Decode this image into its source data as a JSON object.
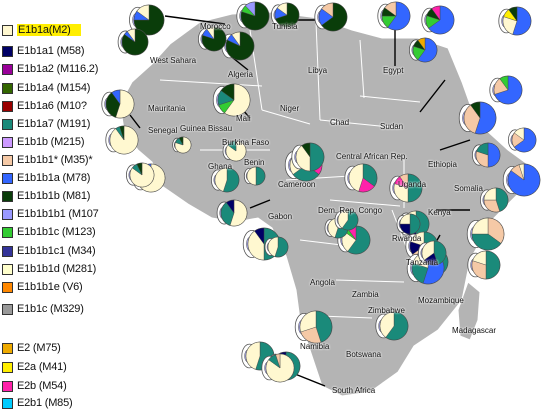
{
  "legend": [
    {
      "label": "E1b1a(M2)",
      "color": "#fff8d0",
      "highlight": true
    },
    {
      "label": "E1b1a1 (M58)",
      "color": "#000066"
    },
    {
      "label": "E1b1a2 (M116.2)",
      "color": "#990099"
    },
    {
      "label": "E1b1a4 (M154)",
      "color": "#336600"
    },
    {
      "label": "E1b1a6 (M10?",
      "color": "#990000"
    },
    {
      "label": "E1b1a7 (M191)",
      "color": "#1a8a7a"
    },
    {
      "label": "E1b1b (M215)",
      "color": "#cc99ff"
    },
    {
      "label": "E1b1b1* (M35)*",
      "color": "#f5c9a6"
    },
    {
      "label": "E1b1b1a (M78)",
      "color": "#3366ff"
    },
    {
      "label": "E1b1b1b (M81)",
      "color": "#0a3d0a"
    },
    {
      "label": "E1b1b1b1 (M107",
      "color": "#9999ff"
    },
    {
      "label": "E1b1b1c (M123)",
      "color": "#33cc33"
    },
    {
      "label": "E1b1b1c1 (M34)",
      "color": "#333399"
    },
    {
      "label": "E1b1b1d (M281)",
      "color": "#ffffcc"
    },
    {
      "label": "E1b1b1e (V6)",
      "color": "#ff8800"
    },
    {
      "label": "E1b1c (M329)",
      "color": "#999999"
    },
    {
      "label": "E2 (M75)",
      "color": "#eeaa00"
    },
    {
      "label": "E2a (M41)",
      "color": "#ffee00"
    },
    {
      "label": "E2b (M54)",
      "color": "#ff22aa"
    },
    {
      "label": "E2b1 (M85)",
      "color": "#00ccff"
    }
  ],
  "countries": [
    {
      "id": "morocco",
      "label": "Morocco"
    },
    {
      "id": "tunisia",
      "label": "Tunisia"
    },
    {
      "id": "algeria",
      "label": "Algeria"
    },
    {
      "id": "libya",
      "label": "Libya"
    },
    {
      "id": "egypt",
      "label": "Egypt"
    },
    {
      "id": "west-sahara",
      "label": "West Sahara"
    },
    {
      "id": "mauritania",
      "label": "Mauritania"
    },
    {
      "id": "mali",
      "label": "Mali"
    },
    {
      "id": "niger",
      "label": "Niger"
    },
    {
      "id": "chad",
      "label": "Chad"
    },
    {
      "id": "sudan",
      "label": "Sudan"
    },
    {
      "id": "senegal",
      "label": "Senegal"
    },
    {
      "id": "guinea-bissau",
      "label": "Guinea Bissau"
    },
    {
      "id": "burkina-faso",
      "label": "Burkina Faso"
    },
    {
      "id": "ghana",
      "label": "Ghana"
    },
    {
      "id": "benin",
      "label": "Benin"
    },
    {
      "id": "car",
      "label": "Central African Rep."
    },
    {
      "id": "ethiopia",
      "label": "Ethiopia"
    },
    {
      "id": "somalia",
      "label": "Somalia"
    },
    {
      "id": "cameroon",
      "label": "Cameroon"
    },
    {
      "id": "uganda",
      "label": "Uganda"
    },
    {
      "id": "kenya",
      "label": "Kenya"
    },
    {
      "id": "gabon",
      "label": "Gabon"
    },
    {
      "id": "drc",
      "label": "Dem. Rep. Congo"
    },
    {
      "id": "rwanda",
      "label": "Rwanda"
    },
    {
      "id": "tanzania",
      "label": "Tanzania"
    },
    {
      "id": "angola",
      "label": "Angola"
    },
    {
      "id": "zambia",
      "label": "Zambia"
    },
    {
      "id": "mozambique",
      "label": "Mozambique"
    },
    {
      "id": "zimbabwe",
      "label": "Zimbabwe"
    },
    {
      "id": "namibia",
      "label": "Namibia"
    },
    {
      "id": "botswana",
      "label": "Botswana"
    },
    {
      "id": "madagascar",
      "label": "Madagascar"
    },
    {
      "id": "south-africa",
      "label": "South Africa"
    }
  ],
  "pies": [
    {
      "id": "morocco-1",
      "slices": [
        [
          "E1b1b1b (M81)",
          0.75
        ],
        [
          "E1b1b1a (M78)",
          0.1
        ],
        [
          "E1b1a(M2)",
          0.15
        ]
      ]
    },
    {
      "id": "morocco-2",
      "slices": [
        [
          "E1b1b1b (M81)",
          0.8
        ],
        [
          "E1b1b1c (M123)",
          0.08
        ],
        [
          "E1b1b1b1 (M107",
          0.12
        ]
      ]
    },
    {
      "id": "morocco-3",
      "slices": [
        [
          "E1b1b1b (M81)",
          0.82
        ],
        [
          "E1b1b1a (M78)",
          0.08
        ],
        [
          "E1b1a(M2)",
          0.1
        ]
      ]
    },
    {
      "id": "tunisia-1",
      "slices": [
        [
          "E1b1b1b (M81)",
          0.65
        ],
        [
          "E1b1b1a (M78)",
          0.2
        ],
        [
          "E1b1b1* (M35)*",
          0.15
        ]
      ]
    },
    {
      "id": "tunisia-2",
      "slices": [
        [
          "E1b1b1b (M81)",
          0.7
        ],
        [
          "E1b1b1a (M78)",
          0.15
        ],
        [
          "E1b1a(M2)",
          0.15
        ]
      ]
    },
    {
      "id": "algeria-1",
      "slices": [
        [
          "E1b1b1b (M81)",
          0.8
        ],
        [
          "E1b1b1a (M78)",
          0.1
        ],
        [
          "E1b1a(M2)",
          0.1
        ]
      ]
    },
    {
      "id": "egypt-1",
      "slices": [
        [
          "E1b1b1a (M78)",
          0.6
        ],
        [
          "E1b1b1c (M123)",
          0.15
        ],
        [
          "E1b1b1b (M81)",
          0.1
        ],
        [
          "E1b1b1* (M35)*",
          0.15
        ]
      ]
    },
    {
      "id": "egypt-2",
      "slices": [
        [
          "E1b1b1a (M78)",
          0.65
        ],
        [
          "E1b1b1c (M123)",
          0.15
        ],
        [
          "E1b1b1b (M81)",
          0.1
        ],
        [
          "E2b (M54)",
          0.1
        ]
      ]
    },
    {
      "id": "egypt-3",
      "slices": [
        [
          "E1b1b1a (M78)",
          0.6
        ],
        [
          "E1b1b1c (M123)",
          0.2
        ],
        [
          "E1b1b1b (M81)",
          0.1
        ],
        [
          "E2 (M75)",
          0.1
        ]
      ]
    },
    {
      "id": "egypt-4",
      "slices": [
        [
          "E1b1b1a (M78)",
          0.55
        ],
        [
          "E1b1a(M2)",
          0.25
        ],
        [
          "E2a (M41)",
          0.1
        ],
        [
          "E1b1b1b (M81)",
          0.1
        ]
      ]
    },
    {
      "id": "west-sahara-1",
      "slices": [
        [
          "E1b1b1b (M81)",
          0.85
        ],
        [
          "E1b1b1a (M78)",
          0.05
        ],
        [
          "E1b1a(M2)",
          0.1
        ]
      ]
    },
    {
      "id": "mali-1",
      "slices": [
        [
          "E1b1a(M2)",
          0.6
        ],
        [
          "E1b1b1c (M123)",
          0.1
        ],
        [
          "E1b1a7 (M191)",
          0.15
        ],
        [
          "E1b1b1b (M81)",
          0.15
        ]
      ]
    },
    {
      "id": "mauritania-1",
      "slices": [
        [
          "E1b1a(M2)",
          0.55
        ],
        [
          "E1b1b1b (M81)",
          0.35
        ],
        [
          "E1b1b1a (M78)",
          0.1
        ]
      ]
    },
    {
      "id": "senegal-1",
      "slices": [
        [
          "E1b1a(M2)",
          0.9
        ],
        [
          "E1b1a7 (M191)",
          0.05
        ],
        [
          "E1b1b1b (M81)",
          0.05
        ]
      ]
    },
    {
      "id": "senegal-2",
      "slices": [
        [
          "E1b1a(M2)",
          0.88
        ],
        [
          "E1b1a7 (M191)",
          0.07
        ],
        [
          "E1b1b1a (M78)",
          0.05
        ]
      ]
    },
    {
      "id": "senegal-3",
      "slices": [
        [
          "E1b1a(M2)",
          0.85
        ],
        [
          "E1b1a7 (M191)",
          0.08
        ],
        [
          "E1b1b1b (M81)",
          0.07
        ]
      ]
    },
    {
      "id": "guinea-1",
      "slices": [
        [
          "E1b1a(M2)",
          0.8
        ],
        [
          "E1b1a7 (M191)",
          0.12
        ],
        [
          "E1b1b1b (M81)",
          0.08
        ]
      ]
    },
    {
      "id": "burkina-1",
      "slices": [
        [
          "E1b1a(M2)",
          0.85
        ],
        [
          "E1b1a7 (M191)",
          0.15
        ]
      ]
    },
    {
      "id": "ghana-1",
      "slices": [
        [
          "E1b1a7 (M191)",
          0.55
        ],
        [
          "E1b1a(M2)",
          0.45
        ]
      ]
    },
    {
      "id": "benin-1",
      "slices": [
        [
          "E1b1a7 (M191)",
          0.5
        ],
        [
          "E1b1a(M2)",
          0.5
        ]
      ]
    },
    {
      "id": "car-1",
      "slices": [
        [
          "E2b (M54)",
          0.35
        ],
        [
          "E1b1a7 (M191)",
          0.3
        ],
        [
          "E1b1a(M2)",
          0.35
        ]
      ]
    },
    {
      "id": "car-2",
      "slices": [
        [
          "E1b1a7 (M191)",
          0.35
        ],
        [
          "E2b (M54)",
          0.2
        ],
        [
          "E1b1a(M2)",
          0.45
        ]
      ]
    },
    {
      "id": "ethiopia-1",
      "slices": [
        [
          "E1b1b1a (M78)",
          0.55
        ],
        [
          "E1b1b1* (M35)*",
          0.35
        ],
        [
          "E1b1b1b (M81)",
          0.1
        ]
      ]
    },
    {
      "id": "ethiopia-2",
      "slices": [
        [
          "E1b1b1a (M78)",
          0.5
        ],
        [
          "E1b1b1* (M35)*",
          0.3
        ],
        [
          "E1b1a7 (M191)",
          0.2
        ]
      ]
    },
    {
      "id": "ethiopia-3",
      "slices": [
        [
          "E1b1b1a (M78)",
          0.7
        ],
        [
          "E1b1b1* (M35)*",
          0.2
        ],
        [
          "E1b1b1c (M123)",
          0.1
        ]
      ]
    },
    {
      "id": "ethiopia-4",
      "slices": [
        [
          "E1b1b1a (M78)",
          0.65
        ],
        [
          "E1b1b1* (M35)*",
          0.2
        ],
        [
          "E1b1a(M2)",
          0.15
        ]
      ]
    },
    {
      "id": "somalia-1",
      "slices": [
        [
          "E1b1b1a (M78)",
          0.85
        ],
        [
          "E1b1b1* (M35)*",
          0.1
        ],
        [
          "E1b1a(M2)",
          0.05
        ]
      ]
    },
    {
      "id": "cameroon-1",
      "slices": [
        [
          "E1b1a7 (M191)",
          0.5
        ],
        [
          "E1b1a(M2)",
          0.4
        ],
        [
          "E1b1b1b (M81)",
          0.1
        ]
      ]
    },
    {
      "id": "cameroon-2",
      "slices": [
        [
          "E1b1a(M2)",
          0.55
        ],
        [
          "E1b1a7 (M191)",
          0.35
        ],
        [
          "E1b1a1 (M58)",
          0.1
        ]
      ]
    },
    {
      "id": "gabon-1",
      "slices": [
        [
          "E1b1a7 (M191)",
          0.5
        ],
        [
          "E1b1a(M2)",
          0.4
        ],
        [
          "E1b1a1 (M58)",
          0.1
        ]
      ]
    },
    {
      "id": "gabon-2",
      "slices": [
        [
          "E1b1a7 (M191)",
          0.55
        ],
        [
          "E1b1a(M2)",
          0.45
        ]
      ]
    },
    {
      "id": "uganda-1",
      "slices": [
        [
          "E1b1a7 (M191)",
          0.5
        ],
        [
          "E1b1a(M2)",
          0.3
        ],
        [
          "E2b (M54)",
          0.1
        ],
        [
          "E1b1b1* (M35)*",
          0.1
        ]
      ]
    },
    {
      "id": "uganda-2",
      "slices": [
        [
          "E1b1a7 (M191)",
          0.5
        ],
        [
          "E1b1a1 (M58)",
          0.2
        ],
        [
          "E1b1a(M2)",
          0.3
        ]
      ]
    },
    {
      "id": "kenya-1",
      "slices": [
        [
          "E1b1b1* (M35)*",
          0.35
        ],
        [
          "E1b1a7 (M191)",
          0.4
        ],
        [
          "E1b1a(M2)",
          0.25
        ]
      ]
    },
    {
      "id": "kenya-2",
      "slices": [
        [
          "E1b1a7 (M191)",
          0.45
        ],
        [
          "E1b1b1* (M35)*",
          0.3
        ],
        [
          "E1b1a(M2)",
          0.25
        ]
      ]
    },
    {
      "id": "drc-1",
      "slices": [
        [
          "E1b1a7 (M191)",
          0.6
        ],
        [
          "E1b1a(M2)",
          0.25
        ],
        [
          "E1b1b1c (M123)",
          0.05
        ],
        [
          "E2b (M54)",
          0.1
        ]
      ]
    },
    {
      "id": "drc-2",
      "slices": [
        [
          "E1b1a7 (M191)",
          0.55
        ],
        [
          "E1b1a(M2)",
          0.45
        ]
      ]
    },
    {
      "id": "rwanda-1",
      "slices": [
        [
          "E1b1a7 (M191)",
          0.5
        ],
        [
          "E1b1a1 (M58)",
          0.25
        ],
        [
          "E1b1a(M2)",
          0.25
        ]
      ]
    },
    {
      "id": "tanzania-1",
      "slices": [
        [
          "E1b1a7 (M191)",
          0.45
        ],
        [
          "E1b1b1* (M35)*",
          0.2
        ],
        [
          "E1b1a1 (M58)",
          0.15
        ],
        [
          "E1b1a(M2)",
          0.2
        ]
      ]
    },
    {
      "id": "tanzania-2",
      "slices": [
        [
          "E1b1a7 (M191)",
          0.4
        ],
        [
          "E1b1a(M2)",
          0.4
        ],
        [
          "E1b1b1* (M35)*",
          0.2
        ]
      ]
    },
    {
      "id": "tanzania-3",
      "slices": [
        [
          "E1b1b1a (M78)",
          0.55
        ],
        [
          "E1b1a7 (M191)",
          0.25
        ],
        [
          "E1b1a(M2)",
          0.2
        ]
      ]
    },
    {
      "id": "tanzania-4",
      "slices": [
        [
          "E1b1a7 (M191)",
          0.5
        ],
        [
          "E1b1b1* (M35)*",
          0.3
        ],
        [
          "E1b1a(M2)",
          0.2
        ]
      ]
    },
    {
      "id": "mozambique-1",
      "slices": [
        [
          "E1b1a7 (M191)",
          0.45
        ],
        [
          "E1b1a1 (M58)",
          0.2
        ],
        [
          "E1b1a(M2)",
          0.35
        ]
      ]
    },
    {
      "id": "angola-1",
      "slices": [
        [
          "E1b1a7 (M191)",
          0.55
        ],
        [
          "E1b1a(M2)",
          0.45
        ]
      ]
    },
    {
      "id": "zambia-1",
      "slices": [
        [
          "E1b1a7 (M191)",
          0.6
        ],
        [
          "E1b1a(M2)",
          0.4
        ]
      ]
    },
    {
      "id": "zimbabwe-1",
      "slices": [
        [
          "E1b1a7 (M191)",
          0.6
        ],
        [
          "E1b1a(M2)",
          0.4
        ]
      ]
    },
    {
      "id": "namibia-1",
      "slices": [
        [
          "E1b1a7 (M191)",
          0.45
        ],
        [
          "E1b1b1* (M35)*",
          0.25
        ],
        [
          "E1b1a(M2)",
          0.3
        ]
      ]
    },
    {
      "id": "namibia-2",
      "slices": [
        [
          "E1b1a7 (M191)",
          0.5
        ],
        [
          "E1b1b1* (M35)*",
          0.3
        ],
        [
          "E1b1a1 (M58)",
          0.2
        ]
      ]
    },
    {
      "id": "south-africa-1",
      "slices": [
        [
          "E1b1a(M2)",
          0.85
        ],
        [
          "E1b1a7 (M191)",
          0.1
        ],
        [
          "E1b1b1* (M35)*",
          0.05
        ]
      ]
    }
  ]
}
